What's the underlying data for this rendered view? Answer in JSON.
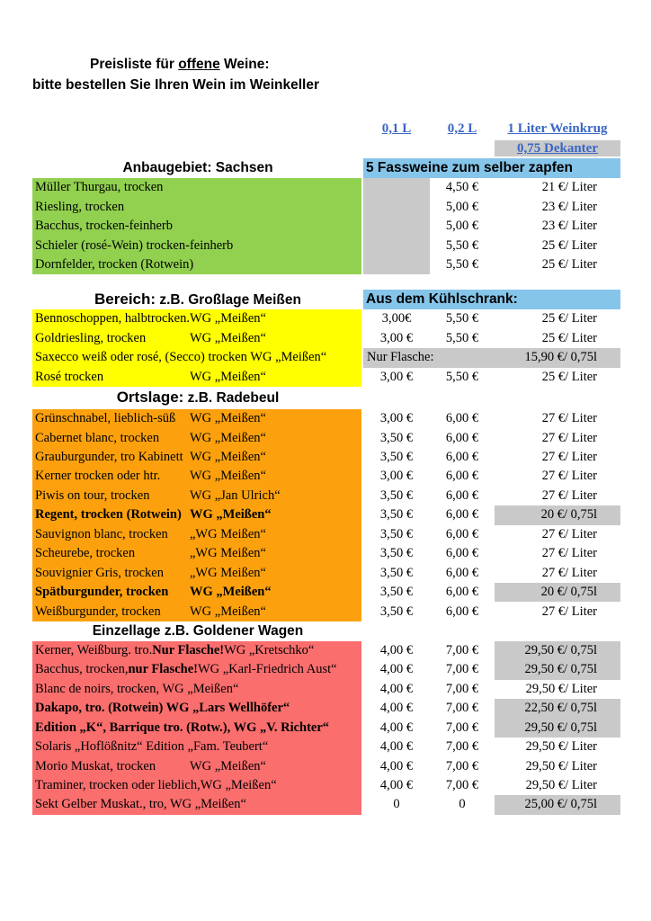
{
  "title": {
    "line1_prefix": "Preisliste für ",
    "line1_underlined": "offene",
    "line1_suffix": " Weine:",
    "line2": "bitte bestellen Sie Ihren Wein im Weinkeller"
  },
  "col_headers": {
    "c1": "0,1 L",
    "c2": "0,2 L",
    "c3a": "1 Liter Weinkrug",
    "c3b": "0,75 Dekanter"
  },
  "colors": {
    "green": "#92D050",
    "yellow": "#FFFF00",
    "orange": "#FCA10D",
    "red": "#FA6E6E",
    "blue_band": "#86C5EA",
    "gray": "#C9C9C9",
    "link_blue": "#3A66C4"
  },
  "sections": [
    {
      "key": "sachsen",
      "header_left_parts": [
        {
          "t": "Anbaugebiet:  Sachsen",
          "big": false
        }
      ],
      "header_right": "5 Fassweine zum selber zapfen",
      "row_bg": "#92D050",
      "rows": [
        {
          "name": "Müller Thurgau, trocken",
          "p1": "",
          "p1_gray": true,
          "p2": "4,50 €",
          "p3": "21 €/ Liter"
        },
        {
          "name": "Riesling, trocken",
          "p1": "",
          "p1_gray": true,
          "p2": "5,00 €",
          "p3": "23 €/ Liter"
        },
        {
          "name": "Bacchus, trocken-feinherb",
          "p1": "",
          "p1_gray": true,
          "p2": "5,00 €",
          "p3": "23 €/ Liter"
        },
        {
          "name": "Schieler (rosé-Wein) trocken-feinherb",
          "p1": "",
          "p1_gray": true,
          "p2": "5,50 €",
          "p3": "25 €/ Liter"
        },
        {
          "name": "Dornfelder, trocken  (Rotwein)",
          "p1": "",
          "p1_gray": true,
          "p2": "5,50 €",
          "p3": "25 €/ Liter"
        }
      ]
    },
    {
      "key": "bereich",
      "header_left_parts": [
        {
          "t": "Bereich:",
          "big": true
        },
        {
          "t": " z.B. Großlage Meißen",
          "big": false
        }
      ],
      "header_right": "Aus dem Kühlschrank:",
      "row_bg": "#FFFF00",
      "rows": [
        {
          "name": "Bennoschoppen, halbtrocken.",
          "wg": "WG „Meißen“",
          "p1": "3,00€",
          "p2": "5,50 €",
          "p3": "25 €/ Liter"
        },
        {
          "name": "Goldriesling, trocken",
          "wg": "WG „Meißen“",
          "p1": "3,00 €",
          "p2": "5,50 €",
          "p3": "25 €/ Liter"
        },
        {
          "name": "Saxecco weiß oder rosé, (Secco) trocken   WG „Meißen“",
          "span_left": "Nur Flasche:",
          "span_right": "15,90 €/ 0,75l"
        },
        {
          "name": "Rosé trocken",
          "wg": "WG „Meißen“",
          "p1": "3,00 €",
          "p2": "5,50 €",
          "p3": "25 €/ Liter"
        }
      ]
    },
    {
      "key": "ortslage",
      "header_left_parts": [
        {
          "t": "Ortslage:",
          "big": true
        },
        {
          "t": "  z.B. Radebeul",
          "big": false
        }
      ],
      "header_right": "",
      "row_bg": "#FCA10D",
      "rows": [
        {
          "name": "Grünschnabel, lieblich-süß",
          "wg": "WG „Meißen“",
          "p1": "3,00 €",
          "p2": "6,00 €",
          "p3": "27 €/ Liter"
        },
        {
          "name": "Cabernet blanc, trocken",
          "wg": "WG „Meißen“",
          "p1": "3,50 €",
          "p2": "6,00 €",
          "p3": "27 €/ Liter"
        },
        {
          "name": "Grauburgunder, tro Kabinett",
          "wg": "WG „Meißen“",
          "p1": "3,50 €",
          "p2": "6,00 €",
          "p3": "27 €/ Liter"
        },
        {
          "name": "Kerner trocken oder htr.",
          "wg": "WG „Meißen“",
          "p1": "3,00 €",
          "p2": "6,00 €",
          "p3": "27 €/ Liter"
        },
        {
          "name": "Piwis on tour, trocken",
          "wg": "WG „Jan Ulrich“",
          "p1": "3,50 €",
          "p2": "6,00 €",
          "p3": "27 €/ Liter"
        },
        {
          "name": "Regent, trocken (Rotwein)",
          "wg": "WG „Meißen“",
          "bold": true,
          "p1": "3,50 €",
          "p2": "6,00 €",
          "p3": "20 €/ 0,75l",
          "p3_gray": true
        },
        {
          "name": "Sauvignon blanc, trocken",
          "wg": "„WG Meißen“",
          "p1": "3,50 €",
          "p2": "6,00 €",
          "p3": "27 €/ Liter"
        },
        {
          "name": "Scheurebe, trocken",
          "wg": "„WG Meißen“",
          "p1": "3,50 €",
          "p2": "6,00 €",
          "p3": "27 €/ Liter"
        },
        {
          "name": "Souvignier Gris, trocken",
          "wg": "„WG Meißen“",
          "p1": "3,50 €",
          "p2": "6,00 €",
          "p3": "27 €/ Liter"
        },
        {
          "name": "Spätburgunder, trocken",
          "wg": "WG „Meißen“",
          "bold": true,
          "p1": "3,50 €",
          "p2": "6,00 €",
          "p3": "20 €/ 0,75l",
          "p3_gray": true
        },
        {
          "name": "Weißburgunder, trocken",
          "wg": "WG „Meißen“",
          "p1": "3,50 €",
          "p2": "6,00 €",
          "p3": "27 €/ Liter"
        }
      ]
    },
    {
      "key": "einzellage",
      "header_left_parts": [
        {
          "t": "Einzellage z.B. Goldener Wagen",
          "big": false
        }
      ],
      "header_right": "",
      "row_bg": "#FA6E6E",
      "rows": [
        {
          "parts": [
            {
              "t": "Kerner, Weißburg. tro. ",
              "b": false
            },
            {
              "t": "Nur Flasche!",
              "b": true
            },
            {
              "t": " WG „Kretschko“",
              "b": false
            }
          ],
          "p1": "4,00 €",
          "p2": "7,00 €",
          "p3": "29,50 €/ 0,75l",
          "p3_gray": true
        },
        {
          "parts": [
            {
              "t": "Bacchus, trocken, ",
              "b": false
            },
            {
              "t": "nur Flasche!",
              "b": true
            },
            {
              "t": "  WG „Karl-Friedrich Aust“",
              "b": false
            }
          ],
          "p1": "4,00 €",
          "p2": "7,00 €",
          "p3": "29,50 €/ 0,75l",
          "p3_gray": true
        },
        {
          "name": "Blanc de noirs, trocken,   WG „Meißen“",
          "p1": "4,00 €",
          "p2": "7,00 €",
          "p3": "29,50 €/ Liter"
        },
        {
          "name": "Dakapo, tro. (Rotwein)  WG „Lars Wellhöfer“",
          "bold": true,
          "p1": "4,00 €",
          "p2": "7,00 €",
          "p3": "22,50 €/ 0,75l",
          "p3_gray": true
        },
        {
          "name": "Edition „K“, Barrique  tro. (Rotw.), WG „V. Richter“",
          "bold": true,
          "p1": "4,00 €",
          "p2": "7,00 €",
          "p3": "29,50 €/ 0,75l",
          "p3_gray": true
        },
        {
          "name": "Solaris „Hoflößnitz“  Edition  „Fam. Teubert“",
          "p1": "4,00 €",
          "p2": "7,00 €",
          "p3": "29,50 €/ Liter"
        },
        {
          "name": "Morio Muskat, trocken",
          "wg": "WG „Meißen“",
          "p1": "4,00 €",
          "p2": "7,00 €",
          "p3": "29,50 €/ Liter"
        },
        {
          "name": "Traminer, trocken oder lieblich,",
          "wg": "WG „Meißen“",
          "p1": "4,00 €",
          "p2": "7,00 €",
          "p3": "29,50 €/ Liter"
        },
        {
          "name": "Sekt Gelber Muskat., tro, WG „Meißen“",
          "p1": "0",
          "p2": "0",
          "p3": "25,00 €/ 0,75l",
          "p3_gray": true
        }
      ]
    }
  ]
}
